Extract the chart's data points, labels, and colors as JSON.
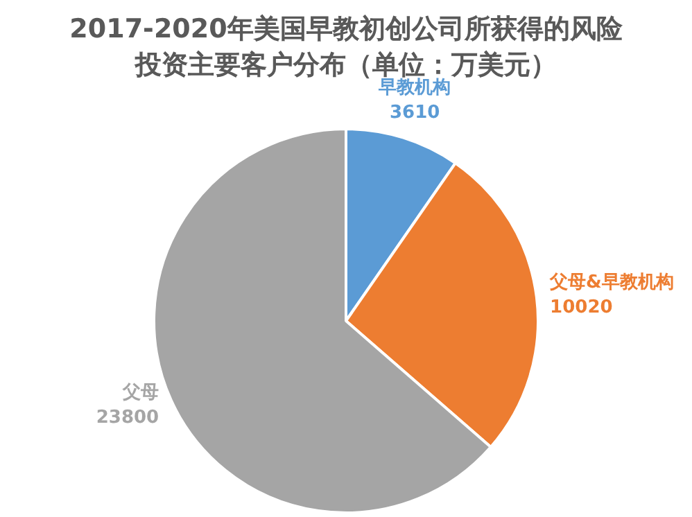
{
  "chart_data": {
    "type": "pie",
    "title": "2017-2020年美国早教初创公司所获得的风险投资主要客户分布（单位：万美元）",
    "categories": [
      "早教机构",
      "父母&早教机构",
      "父母"
    ],
    "values": [
      3610,
      10020,
      23800
    ],
    "colors": [
      "#5b9bd5",
      "#ed7d31",
      "#a5a5a5"
    ],
    "data_labels": true,
    "legend": false
  }
}
